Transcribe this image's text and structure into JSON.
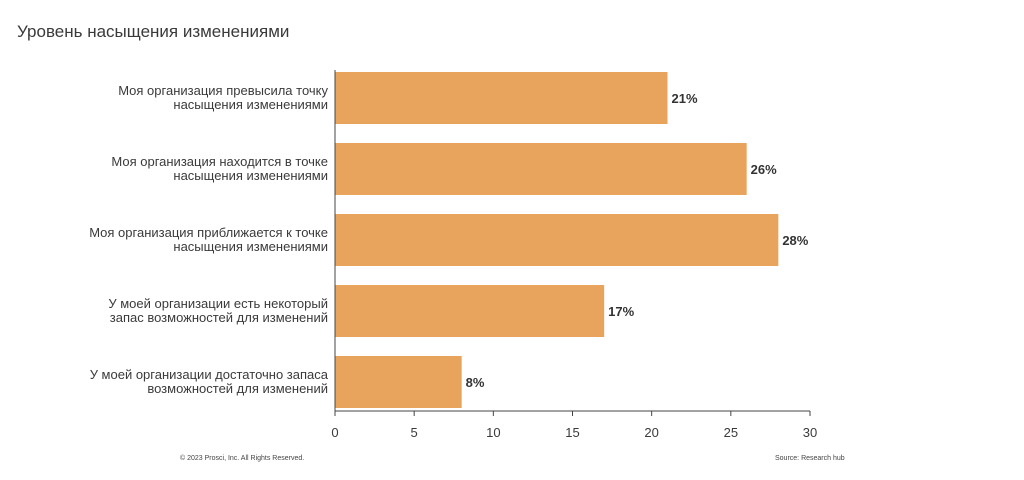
{
  "chart_data": {
    "type": "bar",
    "orientation": "horizontal",
    "title": "Уровень насыщения изменениями",
    "categories": [
      [
        "Моя организация превысила точку",
        "насыщения изменениями"
      ],
      [
        "Моя организация находится в точке",
        "насыщения изменениями"
      ],
      [
        "Моя организация приближается к точке",
        "насыщения изменениями"
      ],
      [
        "У моей организации есть некоторый",
        "запас возможностей для изменений"
      ],
      [
        "У моей организации достаточно запаса",
        "возможностей для изменений"
      ]
    ],
    "values": [
      21,
      26,
      28,
      17,
      8
    ],
    "value_labels": [
      "21%",
      "26%",
      "28%",
      "17%",
      "8%"
    ],
    "xlim": [
      0,
      30
    ],
    "x_ticks": [
      "0",
      "5",
      "10",
      "15",
      "20",
      "25",
      "30"
    ],
    "bar_color": "#e8a35c",
    "grid": false
  },
  "footer": {
    "copyright": "© 2023 Prosci, Inc. All Rights Reserved.",
    "source": "Source: Research hub"
  }
}
